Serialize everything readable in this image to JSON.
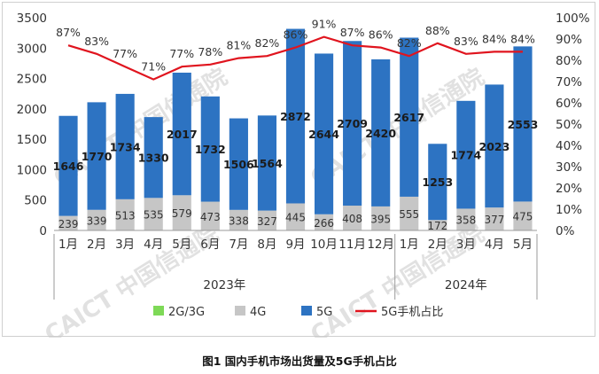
{
  "chart_data": {
    "type": "bar",
    "stacked": true,
    "categories": [
      "1月",
      "2月",
      "3月",
      "4月",
      "5月",
      "6月",
      "7月",
      "8月",
      "9月",
      "10月",
      "11月",
      "12月",
      "1月",
      "2月",
      "3月",
      "4月",
      "5月"
    ],
    "year_groups": [
      {
        "label": "2023年",
        "count": 12
      },
      {
        "label": "2024年",
        "count": 5
      }
    ],
    "series": [
      {
        "name": "2G/3G",
        "type": "bar",
        "color": "#7ed957",
        "values": [
          0,
          0,
          0,
          0,
          0,
          0,
          0,
          0,
          0,
          0,
          0,
          0,
          0,
          0,
          0,
          0,
          0
        ]
      },
      {
        "name": "4G",
        "type": "bar",
        "color": "#c6c6c6",
        "values": [
          239,
          339,
          513,
          535,
          579,
          473,
          338,
          327,
          445,
          266,
          408,
          395,
          555,
          172,
          358,
          377,
          475
        ]
      },
      {
        "name": "5G",
        "type": "bar",
        "color": "#2d73c2",
        "values": [
          1646,
          1770,
          1734,
          1330,
          2017,
          1732,
          1506,
          1564,
          2872,
          2644,
          2709,
          2420,
          2617,
          1253,
          1774,
          2023,
          2553
        ]
      },
      {
        "name": "5G手机占比",
        "type": "line",
        "color": "#e0141e",
        "axis": "right",
        "values": [
          87,
          83,
          77,
          71,
          77,
          78,
          81,
          82,
          86,
          91,
          87,
          86,
          82,
          88,
          83,
          84,
          84
        ]
      }
    ],
    "y_left": {
      "min": 0,
      "max": 3500,
      "step": 500
    },
    "y_right": {
      "min": 0,
      "max": 100,
      "step": 10,
      "unit": "%"
    },
    "legend_position": "bottom",
    "grid": false,
    "caption": "图1   国内手机市场出货量及5G手机占比",
    "watermark_text": "CAICT 中国信通院"
  }
}
